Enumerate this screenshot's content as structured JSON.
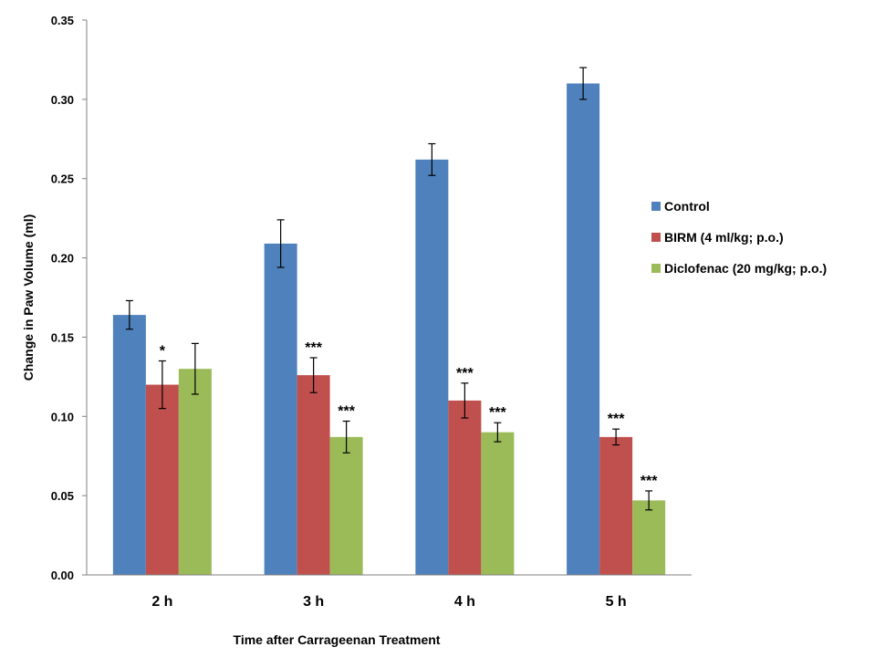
{
  "chart_data": {
    "type": "bar",
    "title": "",
    "xlabel": "Time after Carrageenan Treatment",
    "ylabel": "Change in Paw Volume (ml)",
    "ylim": [
      0,
      0.35
    ],
    "yticks": [
      "0.00",
      "0.05",
      "0.10",
      "0.15",
      "0.20",
      "0.25",
      "0.30",
      "0.35"
    ],
    "categories": [
      "2 h",
      "3 h",
      "4 h",
      "5 h"
    ],
    "series": [
      {
        "name": "Control",
        "color": "#4f81bd",
        "values": [
          0.164,
          0.209,
          0.262,
          0.31
        ],
        "errors": [
          0.009,
          0.015,
          0.01,
          0.01
        ],
        "significance": [
          "",
          "",
          "",
          ""
        ]
      },
      {
        "name": "BIRM (4 ml/kg; p.o.)",
        "color": "#c0504d",
        "values": [
          0.12,
          0.126,
          0.11,
          0.087
        ],
        "errors": [
          0.015,
          0.011,
          0.011,
          0.005
        ],
        "significance": [
          "*",
          "***",
          "***",
          "***"
        ]
      },
      {
        "name": "Diclofenac (20 mg/kg; p.o.)",
        "color": "#9bbb59",
        "values": [
          0.13,
          0.087,
          0.09,
          0.047
        ],
        "errors": [
          0.016,
          0.01,
          0.006,
          0.006
        ],
        "significance": [
          "",
          "***",
          "***",
          "***"
        ]
      }
    ],
    "legend_position": "right"
  }
}
